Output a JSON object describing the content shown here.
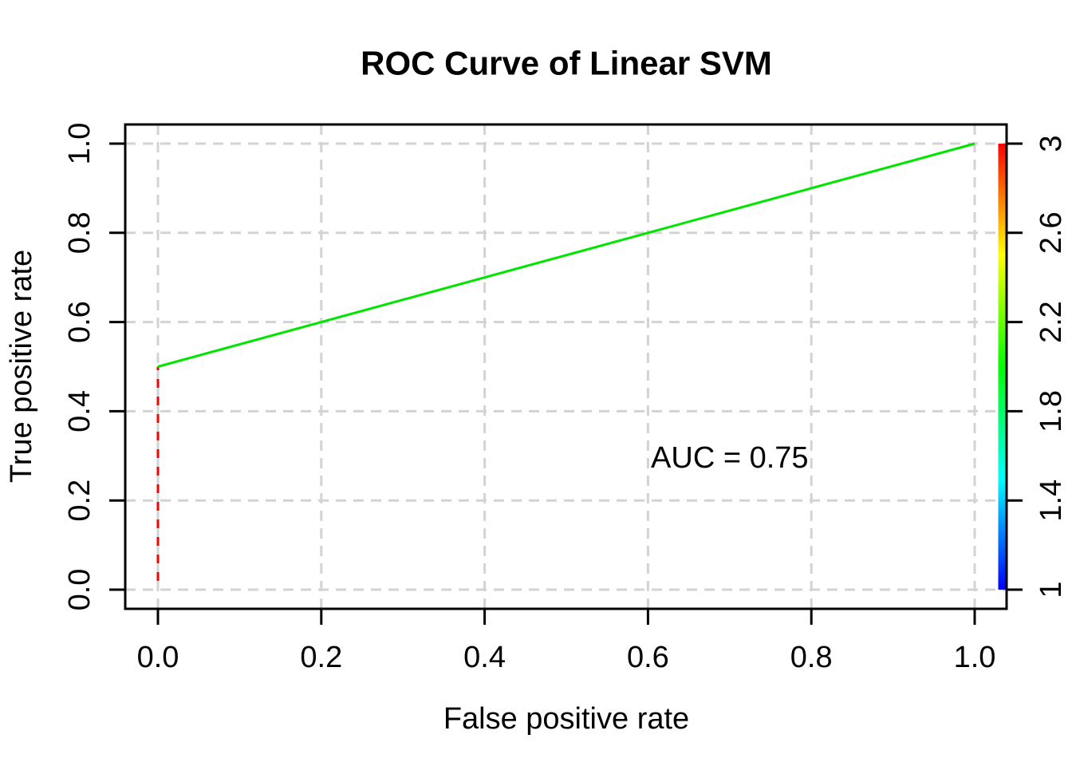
{
  "chart_data": {
    "type": "line",
    "title": "ROC Curve of Linear SVM",
    "xlabel": "False positive rate",
    "ylabel": "True positive rate",
    "xlim": [
      0,
      1
    ],
    "ylim": [
      0,
      1
    ],
    "grid": true,
    "x_ticks": {
      "values": [
        0,
        0.2,
        0.4,
        0.6,
        0.8,
        1.0
      ],
      "labels": [
        "0.0",
        "0.2",
        "0.4",
        "0.6",
        "0.8",
        "1.0"
      ]
    },
    "y_ticks": {
      "values": [
        0,
        0.2,
        0.4,
        0.6,
        0.8,
        1.0
      ],
      "labels": [
        "0.0",
        "0.2",
        "0.4",
        "0.6",
        "0.8",
        "1.0"
      ]
    },
    "series": [
      {
        "name": "roc-curve-vertical-segment",
        "x": [
          0,
          0
        ],
        "y": [
          0,
          0.5
        ],
        "color": "#FF0000",
        "line_style": "dashed",
        "width": 3
      },
      {
        "name": "roc-curve-diagonal-segment",
        "x": [
          0,
          1
        ],
        "y": [
          0.5,
          1
        ],
        "color": "#00E500",
        "line_style": "solid",
        "width": 3
      }
    ],
    "annotations": [
      {
        "text": "AUC = 0.75",
        "x": 0.7,
        "y": 0.295
      }
    ],
    "colorbar": {
      "position": "right",
      "range": [
        1,
        3
      ],
      "tick_values": [
        3,
        2.6,
        2.2,
        1.8,
        1.4,
        1
      ],
      "tick_labels": [
        "3",
        "2.6",
        "2.2",
        "1.8",
        "1.4",
        "1"
      ],
      "gradient_top_to_bottom": [
        "#FF0000",
        "#FFFF00",
        "#00FF00",
        "#00FFFF",
        "#0000FF"
      ]
    },
    "colors": {
      "grid": "#D3D3D3",
      "axis": "#000000",
      "background": "#FFFFFF"
    }
  }
}
